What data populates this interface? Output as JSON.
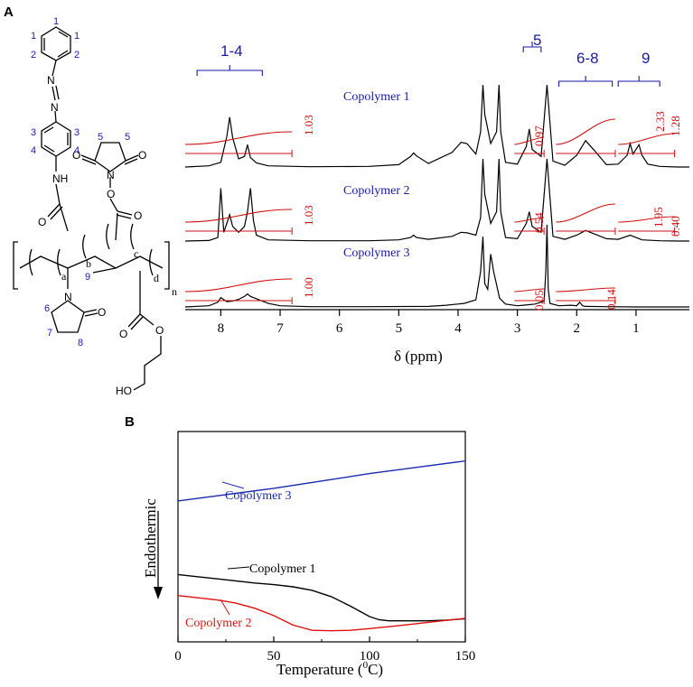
{
  "panels": {
    "a_letter": "A",
    "b_letter": "B"
  },
  "structure": {
    "labels": {
      "nh": "NH",
      "n_azo_1": "N",
      "n_azo_2": "N",
      "n_succ": "N",
      "n_pyr": "N",
      "o": "O",
      "ho": "HO",
      "sub_a": "a",
      "sub_b": "b",
      "sub_c": "c",
      "sub_d": "d",
      "sub_n": "n"
    },
    "position_numbers": [
      "1",
      "1",
      "1",
      "2",
      "2",
      "3",
      "3",
      "4",
      "4",
      "5",
      "5",
      "6",
      "7",
      "8",
      "9"
    ]
  },
  "nmr": {
    "xlabel": "δ (ppm)",
    "xticks": [
      "8",
      "7",
      "6",
      "5",
      "4",
      "3",
      "2",
      "1"
    ],
    "series_labels": [
      "Copolymer 1",
      "Copolymer 2",
      "Copolymer 3"
    ],
    "regions": [
      "1-4",
      "5",
      "6-8",
      "9"
    ],
    "integrals": {
      "copolymer1": [
        "1.03",
        "0.97",
        "2.33",
        "1.28"
      ],
      "copolymer2": [
        "1.03",
        "0.54",
        "1.95",
        "0.40"
      ],
      "copolymer3": [
        "1.00",
        "0.05",
        "0.14"
      ]
    }
  },
  "chart_data": [
    {
      "type": "line",
      "panel": "A",
      "xlabel": "δ (ppm)",
      "xlim": [
        8.6,
        0.1
      ],
      "x_reversed": true,
      "xticks": [
        8,
        7,
        6,
        5,
        4,
        3,
        2,
        1
      ],
      "series": [
        {
          "name": "Copolymer 1",
          "x": [
            8.6,
            8.2,
            8.0,
            7.9,
            7.85,
            7.8,
            7.7,
            7.6,
            7.55,
            7.5,
            7.4,
            7.2,
            6.5,
            5.5,
            5.0,
            4.8,
            4.75,
            4.7,
            4.5,
            4.1,
            3.95,
            3.85,
            3.7,
            3.62,
            3.58,
            3.55,
            3.45,
            3.35,
            3.31,
            3.28,
            3.2,
            3.0,
            2.85,
            2.8,
            2.75,
            2.6,
            2.5,
            2.4,
            2.2,
            2.0,
            1.85,
            1.7,
            1.5,
            1.3,
            1.15,
            1.1,
            1.05,
            0.95,
            0.9,
            0.8,
            0.6,
            0.3,
            0.1
          ],
          "y": [
            0,
            0.2,
            0.8,
            5.2,
            8.5,
            5.0,
            1.4,
            1.8,
            3.8,
            1.6,
            0.7,
            0.2,
            0.05,
            0.1,
            0.4,
            1.8,
            2.4,
            1.9,
            0.6,
            2.5,
            4.2,
            4.0,
            2.2,
            6.0,
            14,
            9.0,
            4.0,
            6.0,
            14,
            6.0,
            0.8,
            0.5,
            3.5,
            6.5,
            3.0,
            1.8,
            14,
            1.0,
            0.3,
            2.0,
            4.5,
            2.8,
            0.4,
            0.5,
            2.0,
            4.0,
            2.2,
            3.8,
            2.0,
            0.5,
            0.1,
            0,
            0
          ]
        },
        {
          "name": "Copolymer 2",
          "x": [
            8.6,
            8.2,
            8.05,
            8.0,
            7.95,
            7.9,
            7.85,
            7.8,
            7.7,
            7.6,
            7.55,
            7.5,
            7.45,
            7.4,
            7.2,
            6.5,
            5.5,
            5.0,
            4.8,
            4.75,
            4.7,
            4.5,
            4.1,
            3.95,
            3.85,
            3.7,
            3.62,
            3.58,
            3.55,
            3.45,
            3.35,
            3.31,
            3.28,
            3.2,
            3.0,
            2.85,
            2.8,
            2.75,
            2.6,
            2.5,
            2.4,
            2.2,
            2.0,
            1.85,
            1.7,
            1.5,
            1.3,
            1.1,
            1.0,
            0.9,
            0.6,
            0.3,
            0.1
          ],
          "y": [
            0,
            0.1,
            0.6,
            9.0,
            1.5,
            3.0,
            4.5,
            2.5,
            1.5,
            2.5,
            5.0,
            9.0,
            3.5,
            1.0,
            0.2,
            0.05,
            0.05,
            0.2,
            0.6,
            1.0,
            0.6,
            0.3,
            0.8,
            1.5,
            1.4,
            1.0,
            4.0,
            14,
            8.0,
            3.0,
            5.0,
            14,
            5.0,
            0.6,
            0.4,
            3.0,
            5.0,
            2.5,
            1.5,
            14,
            0.8,
            0.3,
            1.0,
            1.8,
            1.2,
            0.4,
            0.3,
            1.0,
            0.6,
            0.2,
            0.05,
            0,
            0
          ]
        },
        {
          "name": "Copolymer 3",
          "x": [
            8.6,
            8.2,
            8.05,
            8.0,
            7.9,
            7.8,
            7.7,
            7.6,
            7.55,
            7.5,
            7.4,
            7.2,
            7.0,
            6.5,
            5.5,
            4.5,
            4.2,
            3.9,
            3.7,
            3.62,
            3.58,
            3.55,
            3.5,
            3.45,
            3.4,
            3.3,
            3.2,
            3.0,
            2.9,
            2.7,
            2.55,
            2.52,
            2.5,
            2.48,
            2.45,
            2.3,
            2.1,
            2.0,
            1.95,
            1.9,
            1.85,
            1.5,
            1.0,
            0.5,
            0.1
          ],
          "y": [
            0,
            0.2,
            0.8,
            1.6,
            0.9,
            1.0,
            1.3,
            1.8,
            2.2,
            1.8,
            1.4,
            0.6,
            0.2,
            0.05,
            0.05,
            0.1,
            0.3,
            0.6,
            1.2,
            6.0,
            12,
            4.0,
            3.0,
            9.0,
            6.0,
            1.5,
            0.5,
            0.2,
            0.3,
            0.5,
            1.0,
            6.0,
            14,
            3.0,
            0.6,
            0.2,
            0.3,
            0.2,
            0.8,
            0.2,
            0.1,
            0.05,
            0,
            0,
            0
          ]
        }
      ],
      "regions": [
        {
          "label": "1-4",
          "from": 8.4,
          "to": 7.3
        },
        {
          "label": "5",
          "from": 2.9,
          "to": 2.6
        },
        {
          "label": "6-8",
          "from": 2.3,
          "to": 1.4
        },
        {
          "label": "9",
          "from": 1.3,
          "to": 0.6
        }
      ],
      "integrals": [
        {
          "series": "Copolymer 1",
          "value": 1.03
        },
        {
          "series": "Copolymer 1",
          "value": 0.97
        },
        {
          "series": "Copolymer 1",
          "value": 2.33
        },
        {
          "series": "Copolymer 1",
          "value": 1.28
        },
        {
          "series": "Copolymer 2",
          "value": 1.03
        },
        {
          "series": "Copolymer 2",
          "value": 0.54
        },
        {
          "series": "Copolymer 2",
          "value": 1.95
        },
        {
          "series": "Copolymer 2",
          "value": 0.4
        },
        {
          "series": "Copolymer 3",
          "value": 1.0
        },
        {
          "series": "Copolymer 3",
          "value": 0.05
        },
        {
          "series": "Copolymer 3",
          "value": 0.14
        }
      ]
    },
    {
      "type": "line",
      "panel": "B",
      "xlabel": "Temperature (0C)",
      "ylabel": "Endothermic",
      "xlim": [
        0,
        150
      ],
      "ylim": [
        0,
        100
      ],
      "xticks": [
        0,
        50,
        100,
        150
      ],
      "grid": false,
      "series": [
        {
          "name": "Copolymer 1",
          "color": "#000000",
          "x": [
            0,
            10,
            20,
            30,
            40,
            50,
            60,
            70,
            80,
            90,
            100,
            105,
            110,
            120,
            130,
            140,
            150
          ],
          "y": [
            32,
            31,
            30,
            29,
            28,
            27.2,
            26.2,
            24.5,
            21.5,
            17,
            12,
            10.5,
            10,
            10,
            10,
            10.3,
            11
          ]
        },
        {
          "name": "Copolymer 2",
          "color": "#e01010",
          "x": [
            0,
            10,
            20,
            30,
            40,
            50,
            60,
            70,
            80,
            90,
            100,
            110,
            120,
            130,
            140,
            150
          ],
          "y": [
            22,
            21,
            20,
            18.5,
            16,
            12.5,
            8,
            5.5,
            5.3,
            5.5,
            6.3,
            7.2,
            8.2,
            9.2,
            10.2,
            11.2
          ]
        },
        {
          "name": "Copolymer 3",
          "color": "#1a2ab0",
          "x": [
            0,
            25,
            50,
            75,
            100,
            125,
            150
          ],
          "y": [
            67,
            70,
            73,
            76.5,
            80,
            83,
            86
          ]
        }
      ]
    }
  ]
}
